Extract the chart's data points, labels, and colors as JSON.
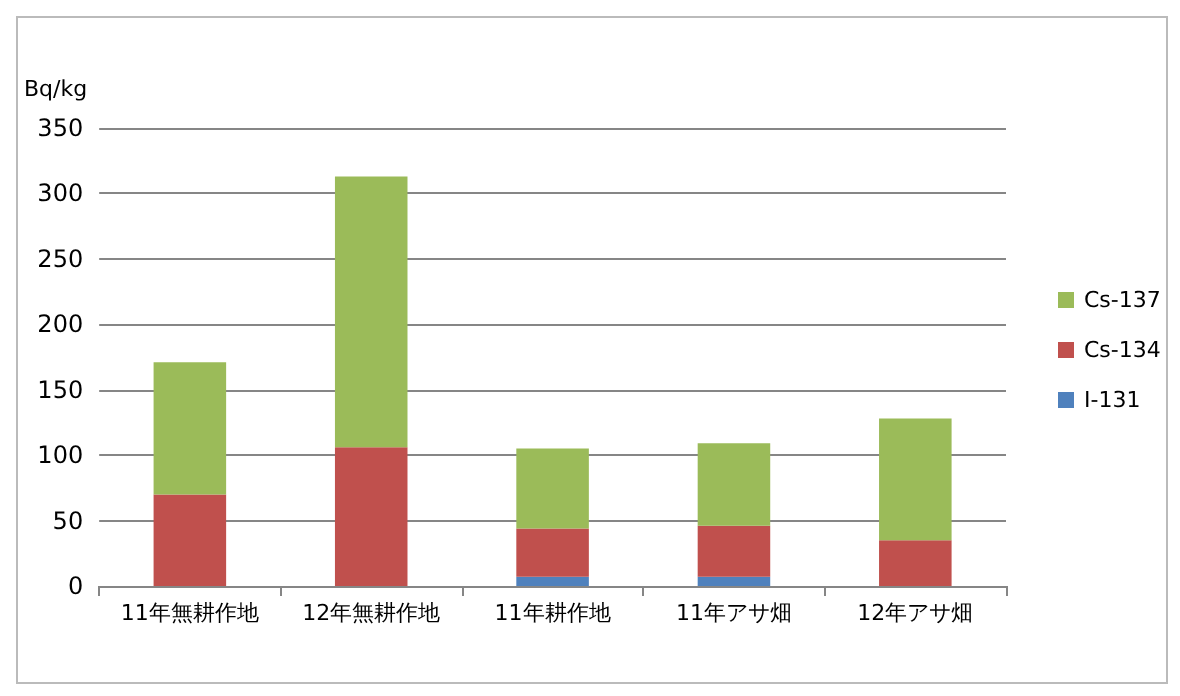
{
  "chart_data": {
    "type": "bar",
    "ylabel": "Bq/kg",
    "stacked": true,
    "categories": [
      "11年無耕作地",
      "12年無耕作地",
      "11年耕作地",
      "11年アサ畑",
      "12年アサ畑"
    ],
    "series": [
      {
        "name": "I-131",
        "color": "#4f81bd",
        "values": [
          0,
          0,
          7,
          7,
          0
        ]
      },
      {
        "name": "Cs-134",
        "color": "#c0504d",
        "values": [
          70,
          106,
          37,
          39,
          35
        ]
      },
      {
        "name": "Cs-137",
        "color": "#9bbb59",
        "values": [
          101,
          207,
          61,
          63,
          93
        ]
      }
    ],
    "ylim": [
      0,
      350
    ],
    "yticks": [
      0,
      50,
      100,
      150,
      200,
      250,
      300,
      350
    ],
    "grid": "y",
    "legend": "right"
  }
}
